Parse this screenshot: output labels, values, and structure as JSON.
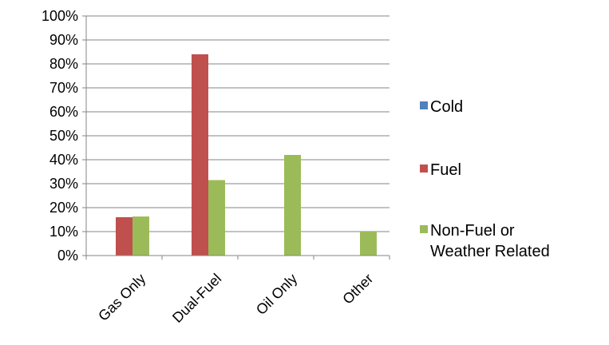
{
  "chart_data": {
    "type": "bar",
    "categories": [
      "Gas Only",
      "Dual-Fuel",
      "Oil Only",
      "Other"
    ],
    "series": [
      {
        "name": "Cold",
        "color": "#4F81BD",
        "values": [
          0,
          0,
          0,
          0
        ]
      },
      {
        "name": "Fuel",
        "color": "#C0504D",
        "values": [
          16,
          84,
          0,
          0
        ]
      },
      {
        "name": "Non-Fuel or Weather Related",
        "color": "#9BBB59",
        "values": [
          16.3,
          31.5,
          42,
          10
        ]
      }
    ],
    "ylim": [
      0,
      100
    ],
    "yticks": [
      "0%",
      "10%",
      "20%",
      "30%",
      "40%",
      "50%",
      "60%",
      "70%",
      "80%",
      "90%",
      "100%"
    ],
    "legend": {
      "placement": "right",
      "items": [
        {
          "label_lines": [
            "Cold"
          ]
        },
        {
          "label_lines": [
            "Fuel"
          ]
        },
        {
          "label_lines": [
            "Non-Fuel or",
            "Weather Related"
          ]
        }
      ]
    },
    "grid": true,
    "title": "",
    "xlabel": "",
    "ylabel": ""
  }
}
